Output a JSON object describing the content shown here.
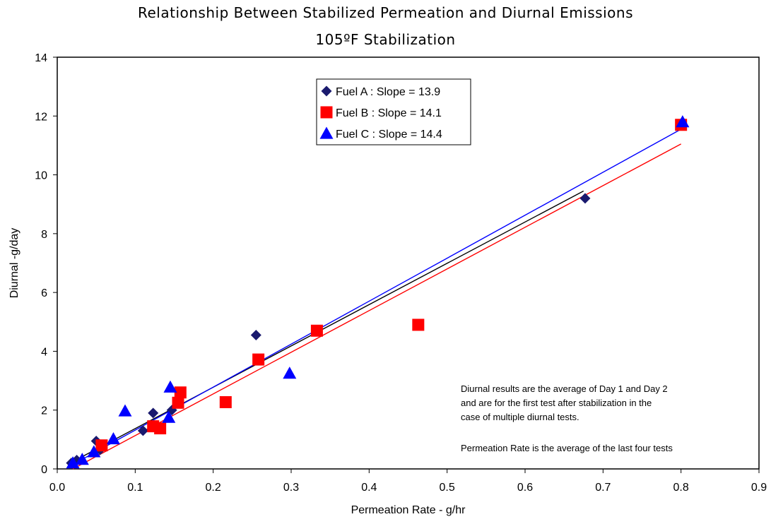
{
  "chart_data": {
    "type": "scatter",
    "title": "Relationship Between Stabilized Permeation and Diurnal Emissions",
    "subtitle": "105ºF Stabilization",
    "xlabel": "Permeation Rate - g/hr",
    "ylabel": "Diurnal -g/day",
    "xlim": [
      0.0,
      0.9
    ],
    "ylim": [
      0,
      14
    ],
    "xticks": [
      "0.0",
      "0.1",
      "0.2",
      "0.3",
      "0.4",
      "0.5",
      "0.6",
      "0.7",
      "0.8",
      "0.9"
    ],
    "yticks": [
      "0",
      "2",
      "4",
      "6",
      "8",
      "10",
      "12",
      "14"
    ],
    "grid": false,
    "legend_position": "top-center",
    "series": [
      {
        "name": "Fuel A : Slope = 13.9",
        "marker": "diamond",
        "color": "#1a1a6e",
        "fit_color": "#000000",
        "fit": [
          [
            0.018,
            0.22
          ],
          [
            0.675,
            9.45
          ]
        ],
        "points": [
          [
            0.018,
            0.2
          ],
          [
            0.025,
            0.3
          ],
          [
            0.05,
            0.95
          ],
          [
            0.055,
            0.65
          ],
          [
            0.11,
            1.3
          ],
          [
            0.123,
            1.9
          ],
          [
            0.147,
            2.0
          ],
          [
            0.255,
            4.55
          ],
          [
            0.677,
            9.2
          ]
        ]
      },
      {
        "name": "Fuel B : Slope = 14.1",
        "marker": "square",
        "color": "#ff0000",
        "fit_color": "#ff0000",
        "fit": [
          [
            0.02,
            0.0
          ],
          [
            0.8,
            11.05
          ]
        ],
        "points": [
          [
            0.057,
            0.8
          ],
          [
            0.123,
            1.45
          ],
          [
            0.132,
            1.38
          ],
          [
            0.155,
            2.25
          ],
          [
            0.158,
            2.6
          ],
          [
            0.216,
            2.27
          ],
          [
            0.258,
            3.72
          ],
          [
            0.333,
            4.7
          ],
          [
            0.463,
            4.9
          ],
          [
            0.8,
            11.7
          ]
        ]
      },
      {
        "name": "Fuel C : Slope = 14.4",
        "marker": "triangle",
        "color": "#0000ff",
        "fit_color": "#0000ff",
        "fit": [
          [
            0.02,
            0.15
          ],
          [
            0.8,
            11.55
          ]
        ],
        "points": [
          [
            0.02,
            0.2
          ],
          [
            0.032,
            0.32
          ],
          [
            0.047,
            0.58
          ],
          [
            0.072,
            1.02
          ],
          [
            0.087,
            1.97
          ],
          [
            0.143,
            1.75
          ],
          [
            0.145,
            2.78
          ],
          [
            0.298,
            3.25
          ],
          [
            0.802,
            11.8
          ]
        ]
      }
    ],
    "annotations": [
      {
        "id": "note1",
        "lines": [
          "Diurnal results are the average of Day 1 and Day 2",
          "and are for the first test after stabilization in the",
          "case of multiple diurnal tests."
        ]
      },
      {
        "id": "note2",
        "lines": [
          "Permeation Rate is the average of the last four tests"
        ]
      }
    ]
  }
}
